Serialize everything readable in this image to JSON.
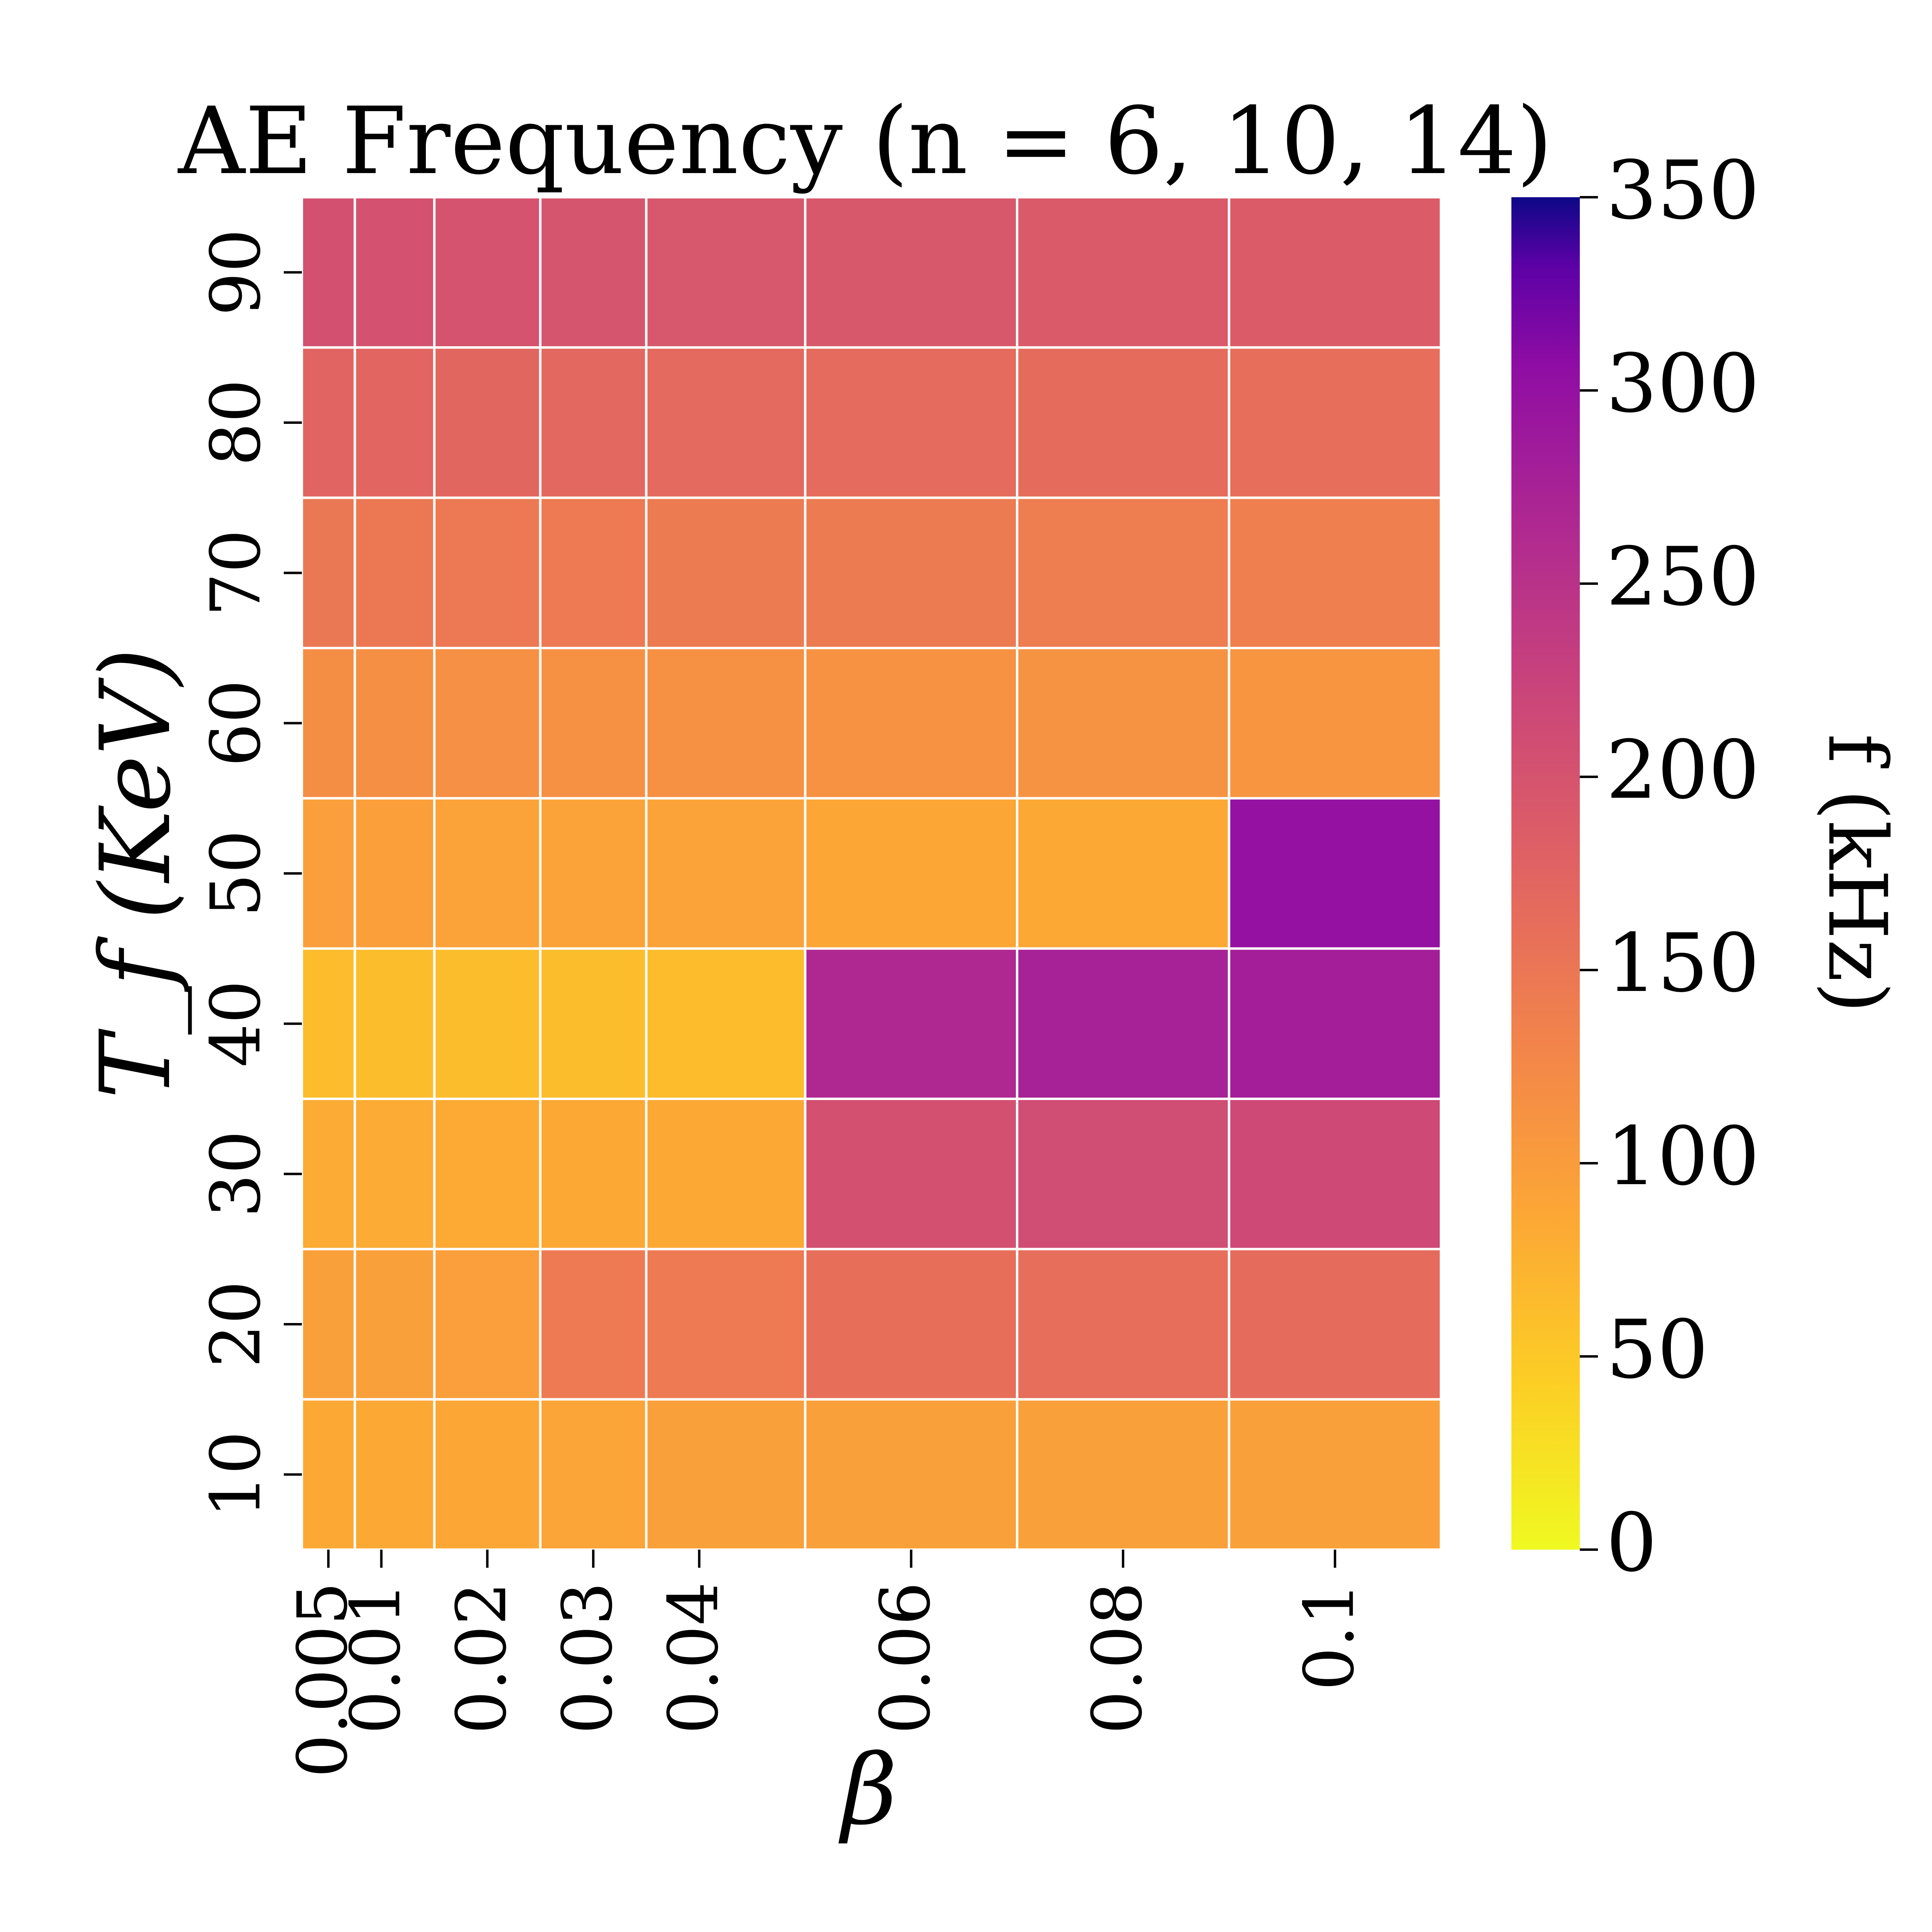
{
  "chart_data": {
    "type": "heatmap",
    "title": "AE Frequency (n = 6, 10, 14)",
    "xlabel": "β",
    "ylabel": "T_f (KeV)",
    "colorbar_label": "f (kHz)",
    "colormap": "plasma_r",
    "vmin": 0,
    "vmax": 350,
    "colorbar_ticks": [
      "0",
      "50",
      "100",
      "150",
      "200",
      "250",
      "300",
      "350"
    ],
    "x": [
      "0.005",
      "0.01",
      "0.02",
      "0.03",
      "0.04",
      "0.06",
      "0.08",
      "0.1"
    ],
    "y": [
      "90",
      "80",
      "70",
      "60",
      "50",
      "40",
      "30",
      "20",
      "10"
    ],
    "z": [
      [
        205,
        203,
        200,
        198,
        195,
        193,
        190,
        187
      ],
      [
        175,
        173,
        172,
        170,
        168,
        166,
        164,
        162
      ],
      [
        148,
        147,
        146,
        145,
        144,
        143,
        141,
        138
      ],
      [
        118,
        117,
        116,
        115,
        114,
        113,
        112,
        110
      ],
      [
        97,
        96,
        93,
        92,
        91,
        88,
        85,
        300
      ],
      [
        63,
        62,
        62,
        62,
        63,
        265,
        275,
        280
      ],
      [
        82,
        82,
        83,
        85,
        85,
        205,
        210,
        215
      ],
      [
        95,
        95,
        97,
        145,
        145,
        160,
        162,
        165
      ],
      [
        85,
        85,
        86,
        90,
        95,
        95,
        95,
        95
      ]
    ]
  }
}
